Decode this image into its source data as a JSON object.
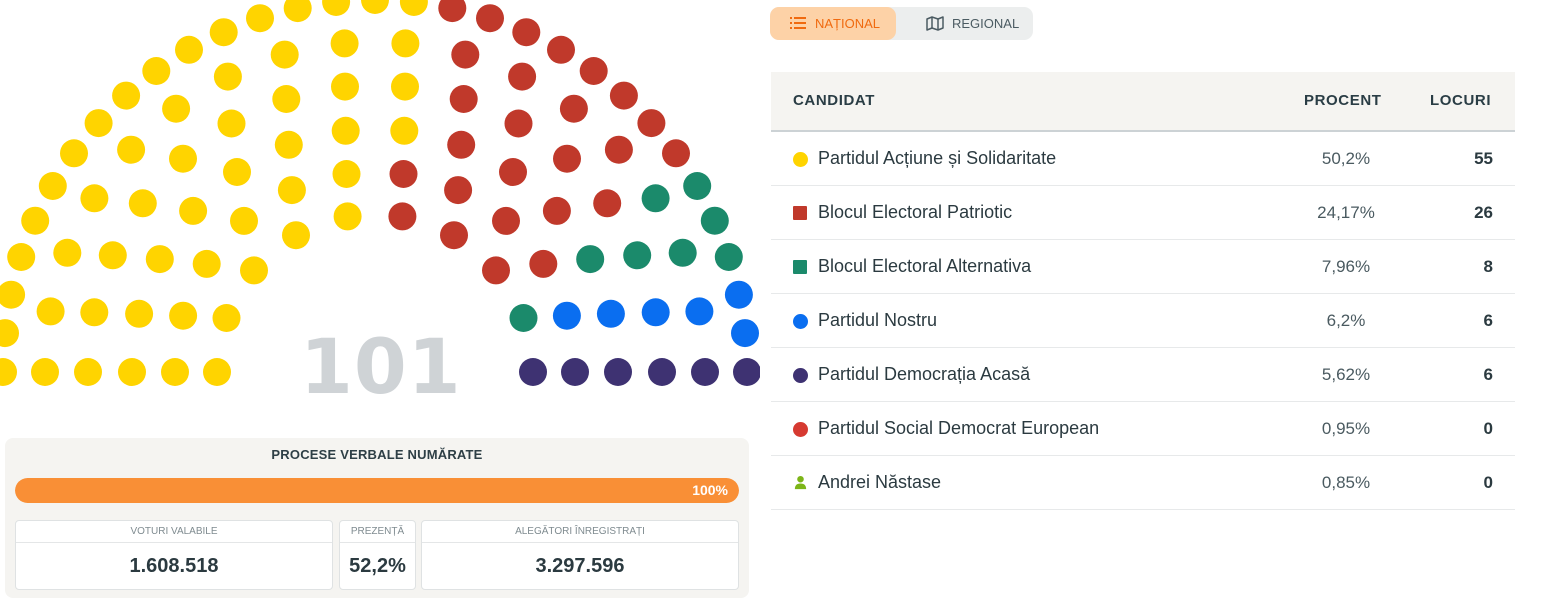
{
  "parliament": {
    "total_seats": "101",
    "parties": [
      {
        "seats": 55,
        "color": "#ffd400"
      },
      {
        "seats": 26,
        "color": "#c0392b"
      },
      {
        "seats": 8,
        "color": "#1b8a6b"
      },
      {
        "seats": 6,
        "color": "#0a6ef0"
      },
      {
        "seats": 6,
        "color": "#3e3272"
      }
    ]
  },
  "stats": {
    "title": "PROCESE VERBALE NUMĂRATE",
    "progress_percent": 100,
    "progress_label": "100%",
    "valid_votes_label": "VOTURI VALABILE",
    "valid_votes_value": "1.608.518",
    "turnout_label": "PREZENȚĂ",
    "turnout_value": "52,2%",
    "registered_label": "ALEGĂTORI ÎNREGISTRAȚI",
    "registered_value": "3.297.596"
  },
  "tabs": {
    "national": {
      "label": "NAȚIONAL",
      "icon": "list-icon",
      "active": true
    },
    "regional": {
      "label": "REGIONAL",
      "icon": "map-icon",
      "active": false
    }
  },
  "table": {
    "headers": {
      "candidate": "CANDIDAT",
      "percent": "PROCENT",
      "seats": "LOCURI"
    },
    "rows": [
      {
        "name": "Partidul Acțiune și Solidaritate",
        "percent": "50,2%",
        "seats": "55",
        "color": "#ffd400",
        "marker": "circle"
      },
      {
        "name": "Blocul Electoral Patriotic",
        "percent": "24,17%",
        "seats": "26",
        "color": "#c0392b",
        "marker": "square"
      },
      {
        "name": "Blocul Electoral Alternativa",
        "percent": "7,96%",
        "seats": "8",
        "color": "#1b8a6b",
        "marker": "square"
      },
      {
        "name": "Partidul Nostru",
        "percent": "6,2%",
        "seats": "6",
        "color": "#0a6ef0",
        "marker": "circle"
      },
      {
        "name": "Partidul Democrația Acasă",
        "percent": "5,62%",
        "seats": "6",
        "color": "#3e3272",
        "marker": "circle"
      },
      {
        "name": "Partidul Social Democrat European",
        "percent": "0,95%",
        "seats": "0",
        "color": "#d63a31",
        "marker": "circle"
      },
      {
        "name": "Andrei Năstase",
        "percent": "0,85%",
        "seats": "0",
        "color": "#7cb518",
        "marker": "person-icon"
      }
    ]
  }
}
